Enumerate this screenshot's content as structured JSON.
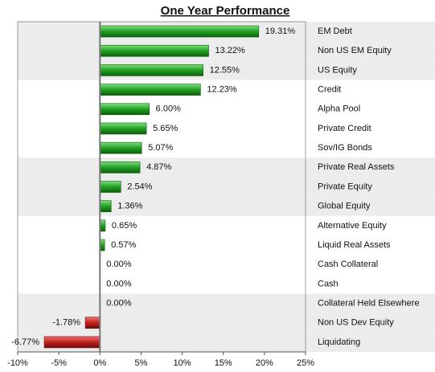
{
  "chart_data": {
    "type": "barh",
    "title": "One Year Performance",
    "categories": [
      "EM Debt",
      "Non US EM Equity",
      "US Equity",
      "Credit",
      "Alpha Pool",
      "Private Credit",
      "Sov/IG Bonds",
      "Private Real Assets",
      "Private Equity",
      "Global Equity",
      "Alternative Equity",
      "Liquid Real Assets",
      "Cash Collateral",
      "Cash",
      "Collateral Held Elsewhere",
      "Non US Dev Equity",
      "Liquidating"
    ],
    "values": [
      19.31,
      13.22,
      12.55,
      12.23,
      6.0,
      5.65,
      5.07,
      4.87,
      2.54,
      1.36,
      0.65,
      0.57,
      0.0,
      0.0,
      0.0,
      -1.78,
      -6.77
    ],
    "value_labels": [
      "19.31%",
      "13.22%",
      "12.55%",
      "12.23%",
      "6.00%",
      "5.65%",
      "5.07%",
      "4.87%",
      "2.54%",
      "1.36%",
      "0.65%",
      "0.57%",
      "0.00%",
      "0.00%",
      "0.00%",
      "-1.78%",
      "-6.77%"
    ],
    "color": "#22a022",
    "negative_color": "#c0201c",
    "xlim": [
      -10,
      25
    ],
    "xticks": [
      {
        "value": -10,
        "label": "-10%"
      },
      {
        "value": -5,
        "label": "-5%"
      },
      {
        "value": 0,
        "label": "0%"
      },
      {
        "value": 5,
        "label": "5%"
      },
      {
        "value": 10,
        "label": "10%"
      },
      {
        "value": 15,
        "label": "15%"
      },
      {
        "value": 20,
        "label": "20%"
      },
      {
        "value": 25,
        "label": "25%"
      }
    ]
  }
}
